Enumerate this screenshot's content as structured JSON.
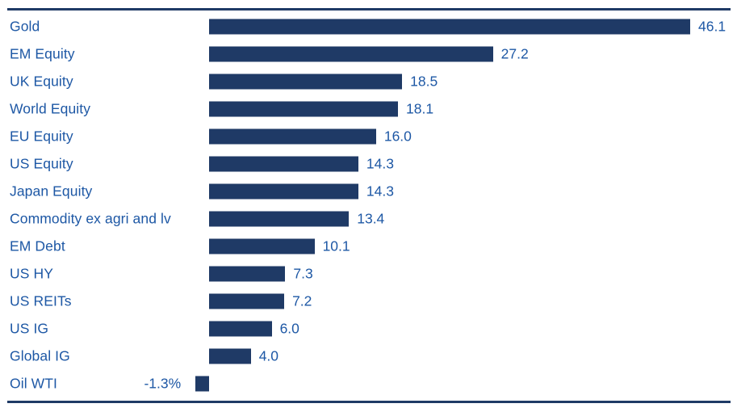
{
  "colors": {
    "background": "#FFFFFF",
    "bar": "#1F3A66",
    "rule": "#1F3A66",
    "text": "#1E58A5"
  },
  "chart_data": {
    "type": "bar",
    "orientation": "horizontal",
    "title": "",
    "xlabel": "",
    "ylabel": "",
    "grid": false,
    "legend": false,
    "xlim": [
      -2,
      48
    ],
    "categories": [
      "Gold",
      "EM Equity",
      "UK Equity",
      "World Equity",
      "EU Equity",
      "US Equity",
      "Japan Equity",
      "Commodity ex agri and lv",
      "EM Debt",
      "US HY",
      "US REITs",
      "US IG",
      "Global IG",
      "Oil WTI"
    ],
    "values": [
      46.1,
      27.2,
      18.5,
      18.1,
      16.0,
      14.3,
      14.3,
      13.4,
      10.1,
      7.3,
      7.2,
      6.0,
      4.0,
      -1.3
    ],
    "value_labels": [
      "46.1",
      "27.2",
      "18.5",
      "18.1",
      "16.0",
      "14.3",
      "14.3",
      "13.4",
      "10.1",
      "7.3",
      "7.2",
      "6.0",
      "4.0",
      "-1.3%"
    ]
  }
}
